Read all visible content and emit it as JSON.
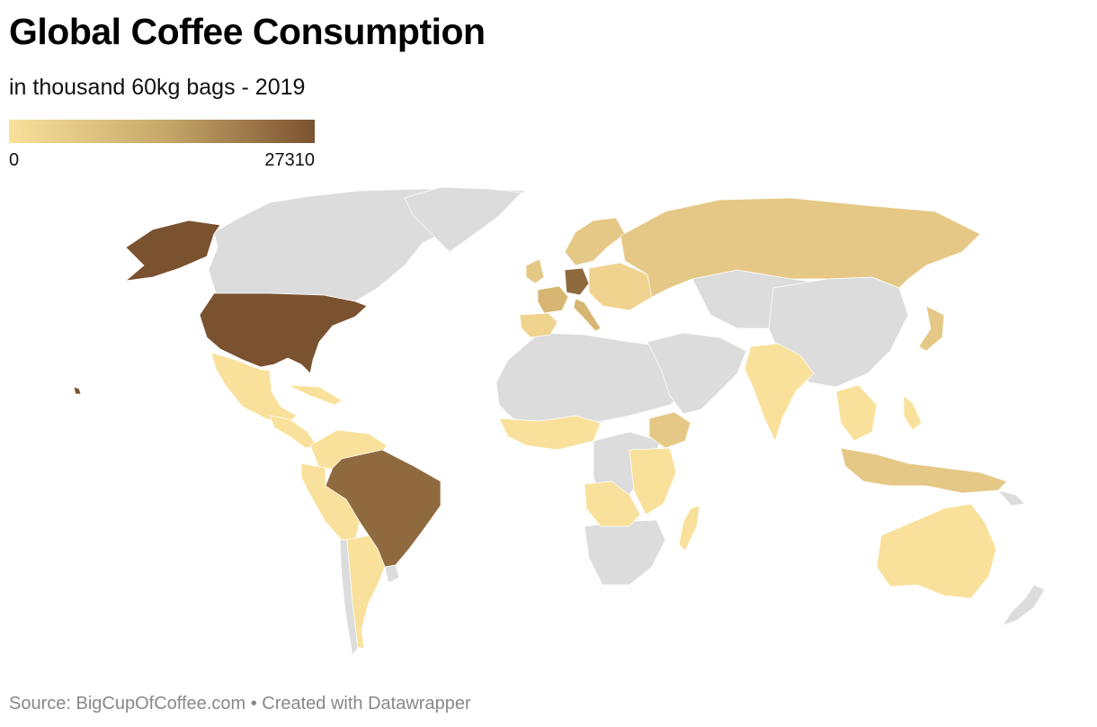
{
  "header": {
    "title": "Global Coffee Consumption",
    "subtitle": "in thousand 60kg bags - 2019"
  },
  "legend": {
    "min_label": "0",
    "max_label": "27310",
    "color_low": "#f9e19b",
    "color_mid": "#c7a96b",
    "color_high": "#7a5230"
  },
  "footer": {
    "source_label": "Source:",
    "source_name": "BigCupOfCoffee.com",
    "separator": "•",
    "credit": "Created with Datawrapper"
  },
  "map_colors": {
    "no_data": "#dcdcdc",
    "very_low": "#f9e19b",
    "low": "#f0d38f",
    "medium_low": "#e5c886",
    "medium": "#d7b673",
    "high": "#8f6a3f",
    "very_high": "#7a5230"
  }
}
